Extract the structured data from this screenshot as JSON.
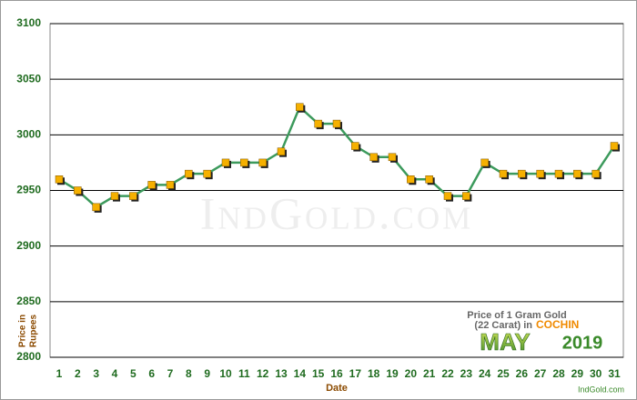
{
  "chart_data": {
    "type": "line",
    "categories": [
      "1",
      "2",
      "3",
      "4",
      "5",
      "6",
      "7",
      "8",
      "9",
      "10",
      "11",
      "12",
      "13",
      "14",
      "15",
      "16",
      "17",
      "18",
      "19",
      "20",
      "21",
      "22",
      "23",
      "24",
      "25",
      "26",
      "27",
      "28",
      "29",
      "30",
      "31"
    ],
    "values": [
      2960,
      2950,
      2935,
      2945,
      2945,
      2955,
      2955,
      2965,
      2965,
      2975,
      2975,
      2975,
      2985,
      3025,
      3010,
      3010,
      2990,
      2980,
      2980,
      2960,
      2960,
      2945,
      2945,
      2975,
      2965,
      2965,
      2965,
      2965,
      2965,
      2965,
      2990
    ],
    "color": "#3c9a5c",
    "marker_color": "#f5b000",
    "ylim": [
      2800,
      3100
    ],
    "yticks": [
      2800,
      2850,
      2900,
      2950,
      3000,
      3050,
      3100
    ],
    "grid": true,
    "xlabel": "Date",
    "ylabel": [
      "Price in",
      "Rupees"
    ],
    "watermark": "IndGold.com",
    "inset": {
      "line1": "Price of 1 Gram Gold",
      "line2": "(22 Carat) in",
      "city": "COCHIN",
      "month": "MAY",
      "year": "2019"
    },
    "credit": "IndGold.com"
  }
}
